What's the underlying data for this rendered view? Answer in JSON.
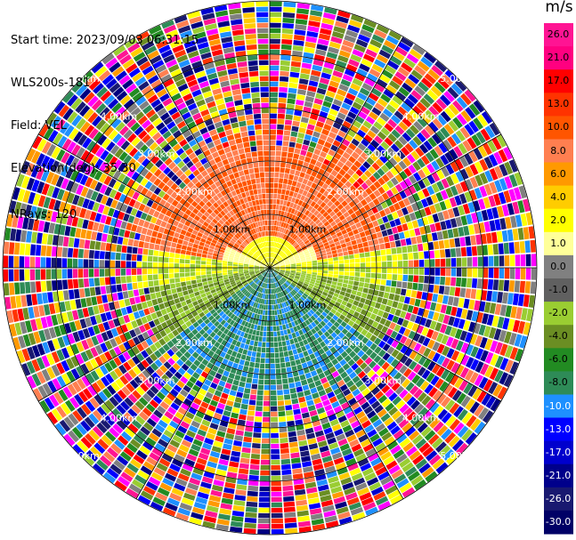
{
  "header": {
    "start_time": "Start time: 2023/09/03 06:31:15",
    "instrument": "WLS200s-181",
    "field": "Field: VEL",
    "elevation": "Elevation(deg): 35.30",
    "nrays": "NRays: 120"
  },
  "ppi": {
    "range_rings": [
      {
        "label": "1.00km",
        "range_km": 1.0
      },
      {
        "label": "2.00km",
        "range_km": 2.0
      },
      {
        "label": "3.00km",
        "range_km": 3.0
      },
      {
        "label": "4.00km",
        "range_km": 4.0
      },
      {
        "label": "5.00km",
        "range_km": 5.0
      }
    ],
    "max_range_km": 5.0,
    "n_rays": 120,
    "noise_begins_km": 2.5
  },
  "colorbar": {
    "unit": "m/s",
    "labels": [
      "26.0",
      "21.0",
      "17.0",
      "13.0",
      "10.0",
      "8.0",
      "6.0",
      "4.0",
      "2.0",
      "1.0",
      "0.0",
      "-1.0",
      "-2.0",
      "-4.0",
      "-6.0",
      "-8.0",
      "-10.0",
      "-13.0",
      "-17.0",
      "-21.0",
      "-26.0",
      "-30.0"
    ],
    "colors": [
      "#ff1493",
      "#ff0080",
      "#ff0000",
      "#ff3300",
      "#ff5500",
      "#ff7f50",
      "#ff9900",
      "#ffcc00",
      "#ffff00",
      "#ffff99",
      "#808080",
      "#606060",
      "#9acd32",
      "#6b8e23",
      "#228b22",
      "#2e8b57",
      "#1e90ff",
      "#0000ff",
      "#0000cd",
      "#00008b",
      "#191970",
      "#000066"
    ]
  }
}
